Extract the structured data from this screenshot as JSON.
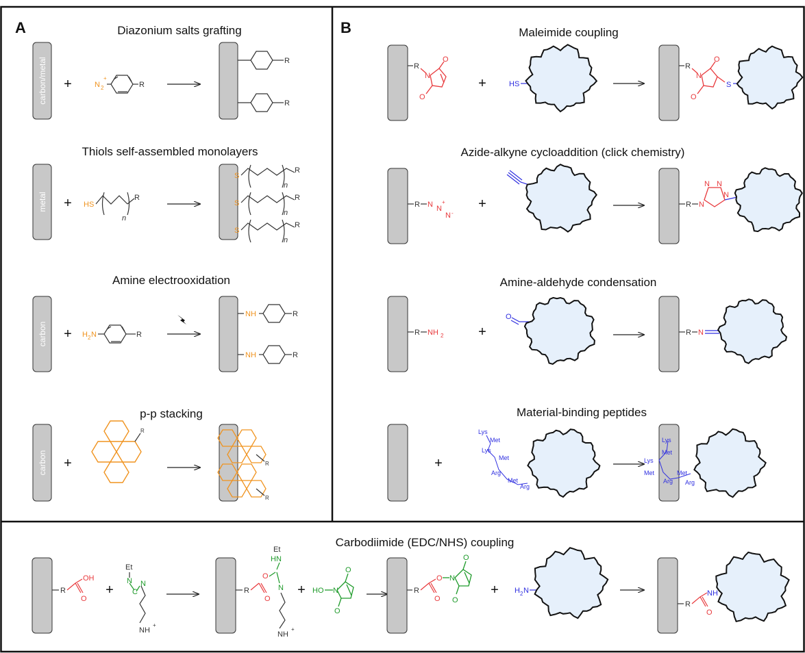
{
  "panels": {
    "a": "A",
    "b": "B"
  },
  "panel_a": {
    "diazonium": {
      "title": "Diazonium salts grafting",
      "substrate": "carbon/metal",
      "reagent": "N",
      "sub": "2",
      "sup": "+",
      "r": "R"
    },
    "thiols": {
      "title": "Thiols self-assembled monolayers",
      "substrate": "metal",
      "sh": "HS",
      "s": "S",
      "n": "n",
      "r": "R"
    },
    "amine": {
      "title": "Amine electrooxidation",
      "substrate": "carbon",
      "h2n": "H",
      "n": "N",
      "nh": "NH",
      "r": "R"
    },
    "stacking": {
      "title": "p-p stacking",
      "substrate": "carbon",
      "r": "R"
    }
  },
  "panel_b": {
    "maleimide": {
      "title": "Maleimide coupling",
      "hs": "HS",
      "s": "S",
      "r": "R",
      "n": "N",
      "o": "O"
    },
    "click": {
      "title": "Azide-alkyne cycloaddition (click chemistry)",
      "r": "R",
      "n": "N"
    },
    "aldehyde": {
      "title": "Amine-aldehyde condensation",
      "r": "R",
      "nh2": "NH",
      "n": "N",
      "o": "O"
    },
    "peptides": {
      "title": "Material-binding peptides",
      "residues": [
        "Lys",
        "Met",
        "Lys",
        "Met",
        "Arg",
        "Met",
        "Arg"
      ]
    }
  },
  "panel_c": {
    "title": "Carbodiimide (EDC/NHS) coupling",
    "r": "R",
    "oh": "OH",
    "o": "O",
    "et": "Et",
    "n": "N",
    "c": "C",
    "hn": "HN",
    "nh": "NH",
    "ho": "HO",
    "h2n": "H",
    "plus_sign": "+"
  },
  "symbols": {
    "plus": "+"
  },
  "colors": {
    "orange": "#f0931f",
    "red": "#e8393c",
    "blue": "#2f2fe0",
    "green": "#1e9a2a",
    "substrate": "#c8c8c8",
    "nanoparticle": "#e6f0fb"
  }
}
